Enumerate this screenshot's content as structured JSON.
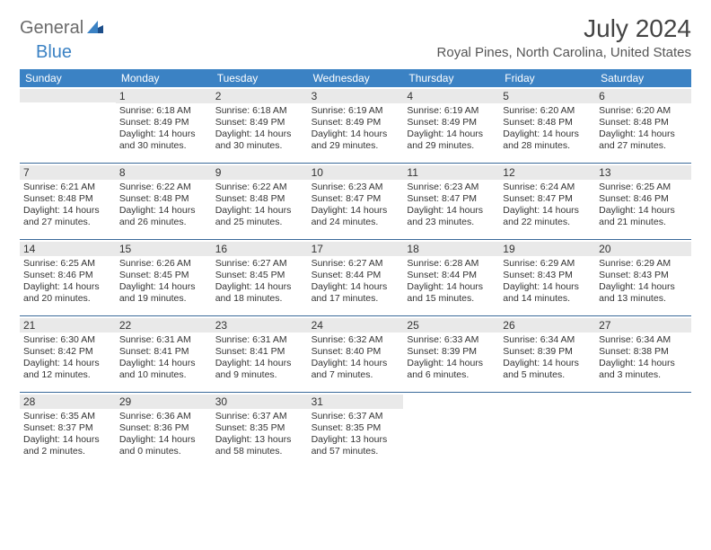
{
  "logo": {
    "text_general": "General",
    "text_blue": "Blue"
  },
  "title": "July 2024",
  "location": "Royal Pines, North Carolina, United States",
  "colors": {
    "header_bg": "#3b82c4",
    "header_text": "#ffffff",
    "daynum_bg": "#e9e9e9",
    "divider": "#3b6a9a",
    "text": "#333333",
    "logo_gray": "#6b6b6b",
    "logo_blue": "#3b82c4"
  },
  "weekdays": [
    "Sunday",
    "Monday",
    "Tuesday",
    "Wednesday",
    "Thursday",
    "Friday",
    "Saturday"
  ],
  "weeks": [
    [
      null,
      {
        "day": "1",
        "sunrise": "6:18 AM",
        "sunset": "8:49 PM",
        "daylight": "14 hours and 30 minutes."
      },
      {
        "day": "2",
        "sunrise": "6:18 AM",
        "sunset": "8:49 PM",
        "daylight": "14 hours and 30 minutes."
      },
      {
        "day": "3",
        "sunrise": "6:19 AM",
        "sunset": "8:49 PM",
        "daylight": "14 hours and 29 minutes."
      },
      {
        "day": "4",
        "sunrise": "6:19 AM",
        "sunset": "8:49 PM",
        "daylight": "14 hours and 29 minutes."
      },
      {
        "day": "5",
        "sunrise": "6:20 AM",
        "sunset": "8:48 PM",
        "daylight": "14 hours and 28 minutes."
      },
      {
        "day": "6",
        "sunrise": "6:20 AM",
        "sunset": "8:48 PM",
        "daylight": "14 hours and 27 minutes."
      }
    ],
    [
      {
        "day": "7",
        "sunrise": "6:21 AM",
        "sunset": "8:48 PM",
        "daylight": "14 hours and 27 minutes."
      },
      {
        "day": "8",
        "sunrise": "6:22 AM",
        "sunset": "8:48 PM",
        "daylight": "14 hours and 26 minutes."
      },
      {
        "day": "9",
        "sunrise": "6:22 AM",
        "sunset": "8:48 PM",
        "daylight": "14 hours and 25 minutes."
      },
      {
        "day": "10",
        "sunrise": "6:23 AM",
        "sunset": "8:47 PM",
        "daylight": "14 hours and 24 minutes."
      },
      {
        "day": "11",
        "sunrise": "6:23 AM",
        "sunset": "8:47 PM",
        "daylight": "14 hours and 23 minutes."
      },
      {
        "day": "12",
        "sunrise": "6:24 AM",
        "sunset": "8:47 PM",
        "daylight": "14 hours and 22 minutes."
      },
      {
        "day": "13",
        "sunrise": "6:25 AM",
        "sunset": "8:46 PM",
        "daylight": "14 hours and 21 minutes."
      }
    ],
    [
      {
        "day": "14",
        "sunrise": "6:25 AM",
        "sunset": "8:46 PM",
        "daylight": "14 hours and 20 minutes."
      },
      {
        "day": "15",
        "sunrise": "6:26 AM",
        "sunset": "8:45 PM",
        "daylight": "14 hours and 19 minutes."
      },
      {
        "day": "16",
        "sunrise": "6:27 AM",
        "sunset": "8:45 PM",
        "daylight": "14 hours and 18 minutes."
      },
      {
        "day": "17",
        "sunrise": "6:27 AM",
        "sunset": "8:44 PM",
        "daylight": "14 hours and 17 minutes."
      },
      {
        "day": "18",
        "sunrise": "6:28 AM",
        "sunset": "8:44 PM",
        "daylight": "14 hours and 15 minutes."
      },
      {
        "day": "19",
        "sunrise": "6:29 AM",
        "sunset": "8:43 PM",
        "daylight": "14 hours and 14 minutes."
      },
      {
        "day": "20",
        "sunrise": "6:29 AM",
        "sunset": "8:43 PM",
        "daylight": "14 hours and 13 minutes."
      }
    ],
    [
      {
        "day": "21",
        "sunrise": "6:30 AM",
        "sunset": "8:42 PM",
        "daylight": "14 hours and 12 minutes."
      },
      {
        "day": "22",
        "sunrise": "6:31 AM",
        "sunset": "8:41 PM",
        "daylight": "14 hours and 10 minutes."
      },
      {
        "day": "23",
        "sunrise": "6:31 AM",
        "sunset": "8:41 PM",
        "daylight": "14 hours and 9 minutes."
      },
      {
        "day": "24",
        "sunrise": "6:32 AM",
        "sunset": "8:40 PM",
        "daylight": "14 hours and 7 minutes."
      },
      {
        "day": "25",
        "sunrise": "6:33 AM",
        "sunset": "8:39 PM",
        "daylight": "14 hours and 6 minutes."
      },
      {
        "day": "26",
        "sunrise": "6:34 AM",
        "sunset": "8:39 PM",
        "daylight": "14 hours and 5 minutes."
      },
      {
        "day": "27",
        "sunrise": "6:34 AM",
        "sunset": "8:38 PM",
        "daylight": "14 hours and 3 minutes."
      }
    ],
    [
      {
        "day": "28",
        "sunrise": "6:35 AM",
        "sunset": "8:37 PM",
        "daylight": "14 hours and 2 minutes."
      },
      {
        "day": "29",
        "sunrise": "6:36 AM",
        "sunset": "8:36 PM",
        "daylight": "14 hours and 0 minutes."
      },
      {
        "day": "30",
        "sunrise": "6:37 AM",
        "sunset": "8:35 PM",
        "daylight": "13 hours and 58 minutes."
      },
      {
        "day": "31",
        "sunrise": "6:37 AM",
        "sunset": "8:35 PM",
        "daylight": "13 hours and 57 minutes."
      },
      null,
      null,
      null
    ]
  ],
  "labels": {
    "sunrise": "Sunrise:",
    "sunset": "Sunset:",
    "daylight": "Daylight:"
  }
}
